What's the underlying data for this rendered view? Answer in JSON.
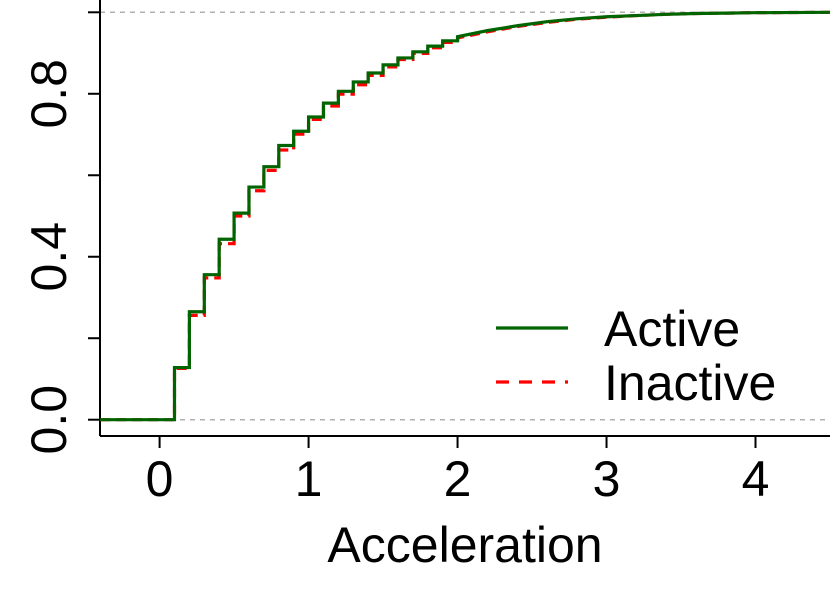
{
  "chart_data": {
    "type": "line",
    "title": "",
    "xlabel": "Acceleration",
    "ylabel": "",
    "xlim": [
      -0.4,
      4.5
    ],
    "ylim": [
      -0.04,
      1.04
    ],
    "x_ticks": [
      0,
      1,
      2,
      3,
      4
    ],
    "x_tick_labels": [
      "0",
      "1",
      "2",
      "3",
      "4"
    ],
    "y_ticks": [
      0.0,
      0.2,
      0.4,
      0.6,
      0.8,
      1.0
    ],
    "y_tick_labels": [
      "0.0",
      "",
      "0.4",
      "",
      "0.8",
      ""
    ],
    "reference_lines": [
      0,
      1
    ],
    "grid": false,
    "legend_position": "bottom-right",
    "series": [
      {
        "name": "Active",
        "color": "#006400",
        "style": "solid",
        "points": [
          [
            -0.4,
            0.0
          ],
          [
            0.1,
            0.0
          ],
          [
            0.1,
            0.128
          ],
          [
            0.2,
            0.128
          ],
          [
            0.2,
            0.265
          ],
          [
            0.3,
            0.265
          ],
          [
            0.3,
            0.356
          ],
          [
            0.4,
            0.356
          ],
          [
            0.4,
            0.443
          ],
          [
            0.5,
            0.443
          ],
          [
            0.5,
            0.507
          ],
          [
            0.6,
            0.507
          ],
          [
            0.6,
            0.571
          ],
          [
            0.7,
            0.571
          ],
          [
            0.7,
            0.621
          ],
          [
            0.8,
            0.621
          ],
          [
            0.8,
            0.673
          ],
          [
            0.9,
            0.673
          ],
          [
            0.9,
            0.708
          ],
          [
            1.0,
            0.708
          ],
          [
            1.0,
            0.743
          ],
          [
            1.1,
            0.743
          ],
          [
            1.1,
            0.777
          ],
          [
            1.2,
            0.777
          ],
          [
            1.2,
            0.806
          ],
          [
            1.3,
            0.806
          ],
          [
            1.3,
            0.829
          ],
          [
            1.4,
            0.829
          ],
          [
            1.4,
            0.851
          ],
          [
            1.5,
            0.851
          ],
          [
            1.5,
            0.871
          ],
          [
            1.6,
            0.871
          ],
          [
            1.6,
            0.888
          ],
          [
            1.7,
            0.888
          ],
          [
            1.7,
            0.903
          ],
          [
            1.8,
            0.903
          ],
          [
            1.8,
            0.917
          ],
          [
            1.9,
            0.917
          ],
          [
            1.9,
            0.93
          ],
          [
            2.0,
            0.93
          ],
          [
            2.0,
            0.94
          ],
          [
            2.2,
            0.955
          ],
          [
            2.4,
            0.967
          ],
          [
            2.6,
            0.977
          ],
          [
            2.8,
            0.984
          ],
          [
            3.0,
            0.989
          ],
          [
            3.2,
            0.992
          ],
          [
            3.4,
            0.995
          ],
          [
            3.6,
            0.997
          ],
          [
            3.8,
            0.998
          ],
          [
            4.0,
            0.999
          ],
          [
            4.5,
            1.0
          ]
        ]
      },
      {
        "name": "Inactive",
        "color": "#ff0000",
        "style": "dashed",
        "points": [
          [
            -0.4,
            0.0
          ],
          [
            0.1,
            0.0
          ],
          [
            0.1,
            0.126
          ],
          [
            0.2,
            0.126
          ],
          [
            0.2,
            0.256
          ],
          [
            0.3,
            0.256
          ],
          [
            0.3,
            0.348
          ],
          [
            0.4,
            0.348
          ],
          [
            0.4,
            0.432
          ],
          [
            0.5,
            0.432
          ],
          [
            0.5,
            0.5
          ],
          [
            0.6,
            0.5
          ],
          [
            0.6,
            0.562
          ],
          [
            0.7,
            0.562
          ],
          [
            0.7,
            0.612
          ],
          [
            0.8,
            0.612
          ],
          [
            0.8,
            0.662
          ],
          [
            0.9,
            0.662
          ],
          [
            0.9,
            0.701
          ],
          [
            1.0,
            0.701
          ],
          [
            1.0,
            0.737
          ],
          [
            1.1,
            0.737
          ],
          [
            1.1,
            0.77
          ],
          [
            1.2,
            0.77
          ],
          [
            1.2,
            0.799
          ],
          [
            1.3,
            0.799
          ],
          [
            1.3,
            0.822
          ],
          [
            1.4,
            0.822
          ],
          [
            1.4,
            0.845
          ],
          [
            1.5,
            0.845
          ],
          [
            1.5,
            0.866
          ],
          [
            1.6,
            0.866
          ],
          [
            1.6,
            0.884
          ],
          [
            1.7,
            0.884
          ],
          [
            1.7,
            0.899
          ],
          [
            1.8,
            0.899
          ],
          [
            1.8,
            0.913
          ],
          [
            1.9,
            0.913
          ],
          [
            1.9,
            0.926
          ],
          [
            2.0,
            0.926
          ],
          [
            2.0,
            0.937
          ],
          [
            2.2,
            0.952
          ],
          [
            2.4,
            0.965
          ],
          [
            2.6,
            0.975
          ],
          [
            2.8,
            0.983
          ],
          [
            3.0,
            0.988
          ],
          [
            3.2,
            0.992
          ],
          [
            3.4,
            0.995
          ],
          [
            3.6,
            0.997
          ],
          [
            3.8,
            0.998
          ],
          [
            4.0,
            0.999
          ],
          [
            4.5,
            1.0
          ]
        ]
      }
    ]
  }
}
